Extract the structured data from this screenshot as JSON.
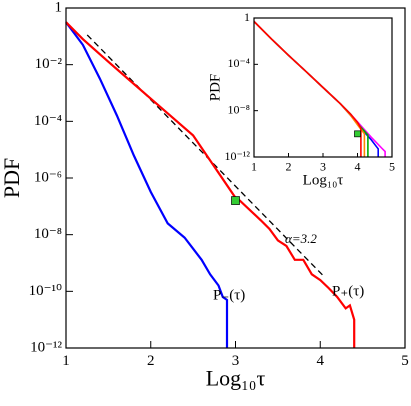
{
  "chart_data": [
    {
      "type": "line",
      "xlabel": "Log₁₀τ",
      "ylabel": "PDF",
      "ylog": true,
      "xlim": [
        1,
        5
      ],
      "ylim": [
        1e-12,
        1
      ],
      "xticks": [
        1,
        2,
        3,
        4,
        5
      ],
      "yticks": [
        1,
        {
          "value": 0.01,
          "label": "10⁻²"
        },
        {
          "value": 0.0001,
          "label": "10⁻⁴"
        },
        {
          "value": 1e-06,
          "label": "10⁻⁶"
        },
        {
          "value": 1e-08,
          "label": "10⁻⁸"
        },
        {
          "value": 1e-10,
          "label": "10⁻¹⁰"
        },
        {
          "value": 1e-12,
          "label": "10⁻¹²"
        }
      ],
      "series": [
        {
          "name": "P₊(τ)",
          "color": "#ff0000",
          "x": [
            1,
            1.2,
            1.5,
            2,
            2.5,
            3,
            3.05,
            3.3,
            3.4,
            3.5,
            3.6,
            3.7,
            3.8,
            3.9,
            4.0,
            4.1,
            4.2,
            4.3,
            4.35,
            4.4,
            4.4
          ],
          "values": [
            0.316,
            0.079,
            0.0126,
            0.00063,
            3.2e-05,
            2e-07,
            1.6e-07,
            3.2e-08,
            1.6e-08,
            6.3e-09,
            4e-09,
            1.3e-09,
            1.3e-09,
            4e-10,
            2.5e-10,
            1.3e-10,
            6.3e-11,
            2.5e-11,
            3.2e-11,
            1e-11,
            1e-12
          ]
        },
        {
          "name": "P₋(τ)",
          "color": "#0000ff",
          "x": [
            1,
            1.2,
            1.4,
            1.6,
            1.8,
            2,
            2.2,
            2.4,
            2.5,
            2.6,
            2.7,
            2.8,
            2.85,
            2.9,
            2.9
          ],
          "values": [
            0.316,
            0.05,
            0.0032,
            0.00016,
            6.3e-06,
            3.2e-07,
            2.5e-08,
            7.9e-09,
            3.2e-09,
            1.3e-09,
            4e-10,
            1.6e-10,
            6.3e-11,
            5e-11,
            1e-12
          ]
        }
      ],
      "fit": {
        "x": [
          1.25,
          4.05
        ],
        "values": [
          0.112,
          3.2e-10
        ],
        "color": "#000000",
        "label": "α=3.2"
      },
      "marker": {
        "x": 3.0,
        "y": 1.6e-07,
        "color": "#33cc33"
      }
    },
    {
      "type": "line",
      "xlabel": "Log₁₀τ",
      "ylabel": "PDF",
      "ylog": true,
      "xlim": [
        1,
        5
      ],
      "ylim": [
        1e-12,
        1
      ],
      "xticks": [
        1,
        2,
        3,
        4,
        5
      ],
      "yticks": [
        1,
        {
          "value": 0.0001,
          "label": "10⁻⁴"
        },
        {
          "value": 1e-08,
          "label": "10⁻⁸"
        },
        {
          "value": 1e-12,
          "label": "10⁻¹²"
        }
      ],
      "series": [
        {
          "color": "#ff0000",
          "x": [
            1,
            1.5,
            2,
            2.5,
            3,
            3.5,
            3.8,
            4.0,
            4.1,
            4.1
          ],
          "values": [
            0.5,
            0.016,
            0.0006,
            2.5e-05,
            1e-06,
            4e-08,
            5e-09,
            1e-09,
            3e-10,
            1e-12
          ]
        },
        {
          "color": "#ff8800",
          "x": [
            1,
            1.5,
            2,
            2.5,
            3,
            3.5,
            3.8,
            4.0,
            4.2,
            4.2
          ],
          "values": [
            0.5,
            0.016,
            0.0006,
            2.5e-05,
            1e-06,
            4e-08,
            4e-09,
            6e-10,
            1e-10,
            1e-12
          ]
        },
        {
          "color": "#00aa00",
          "x": [
            1,
            1.5,
            2,
            2.5,
            3,
            3.5,
            3.8,
            4.0,
            4.3,
            4.3
          ],
          "values": [
            0.5,
            0.016,
            0.0006,
            2.5e-05,
            1e-06,
            4e-08,
            5e-09,
            8e-10,
            8e-11,
            1e-12
          ]
        },
        {
          "color": "#0000ff",
          "x": [
            1,
            1.5,
            2,
            2.5,
            3,
            3.5,
            3.8,
            4.1,
            4.4,
            4.6,
            4.6
          ],
          "values": [
            0.5,
            0.016,
            0.0006,
            2.5e-05,
            1e-06,
            4e-08,
            4e-09,
            3e-10,
            3e-11,
            5e-12,
            1e-12
          ]
        },
        {
          "color": "#ff00ff",
          "x": [
            1,
            1.5,
            2,
            2.5,
            3,
            3.5,
            3.8,
            4.1,
            4.4,
            4.7,
            4.8,
            4.8
          ],
          "values": [
            0.5,
            0.016,
            0.0006,
            2.5e-05,
            1e-06,
            4e-08,
            5e-09,
            5e-10,
            5e-11,
            6e-12,
            3e-12,
            1e-12
          ]
        }
      ],
      "marker": {
        "x": 4.0,
        "y": 1e-10,
        "color": "#33cc33"
      }
    }
  ]
}
